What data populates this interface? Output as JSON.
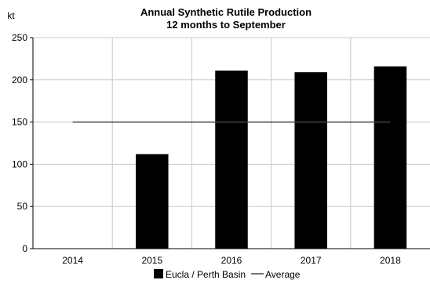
{
  "chart_data": {
    "type": "bar",
    "title": "Annual Synthetic Rutile Production",
    "subtitle": "12 months to September",
    "ylabel": "kt",
    "xlabel": "",
    "categories": [
      "2014",
      "2015",
      "2016",
      "2017",
      "2018"
    ],
    "series": [
      {
        "name": "Eucla / Perth Basin",
        "type": "bar",
        "color": "#000000",
        "values": [
          0,
          112,
          211,
          209,
          216
        ]
      },
      {
        "name": "Average",
        "type": "line",
        "color": "#444444",
        "values": [
          150,
          150,
          150,
          150,
          150
        ]
      }
    ],
    "ylim": [
      0,
      250
    ],
    "yticks": [
      0,
      50,
      100,
      150,
      200,
      250
    ],
    "grid": true,
    "legend_position": "bottom"
  }
}
